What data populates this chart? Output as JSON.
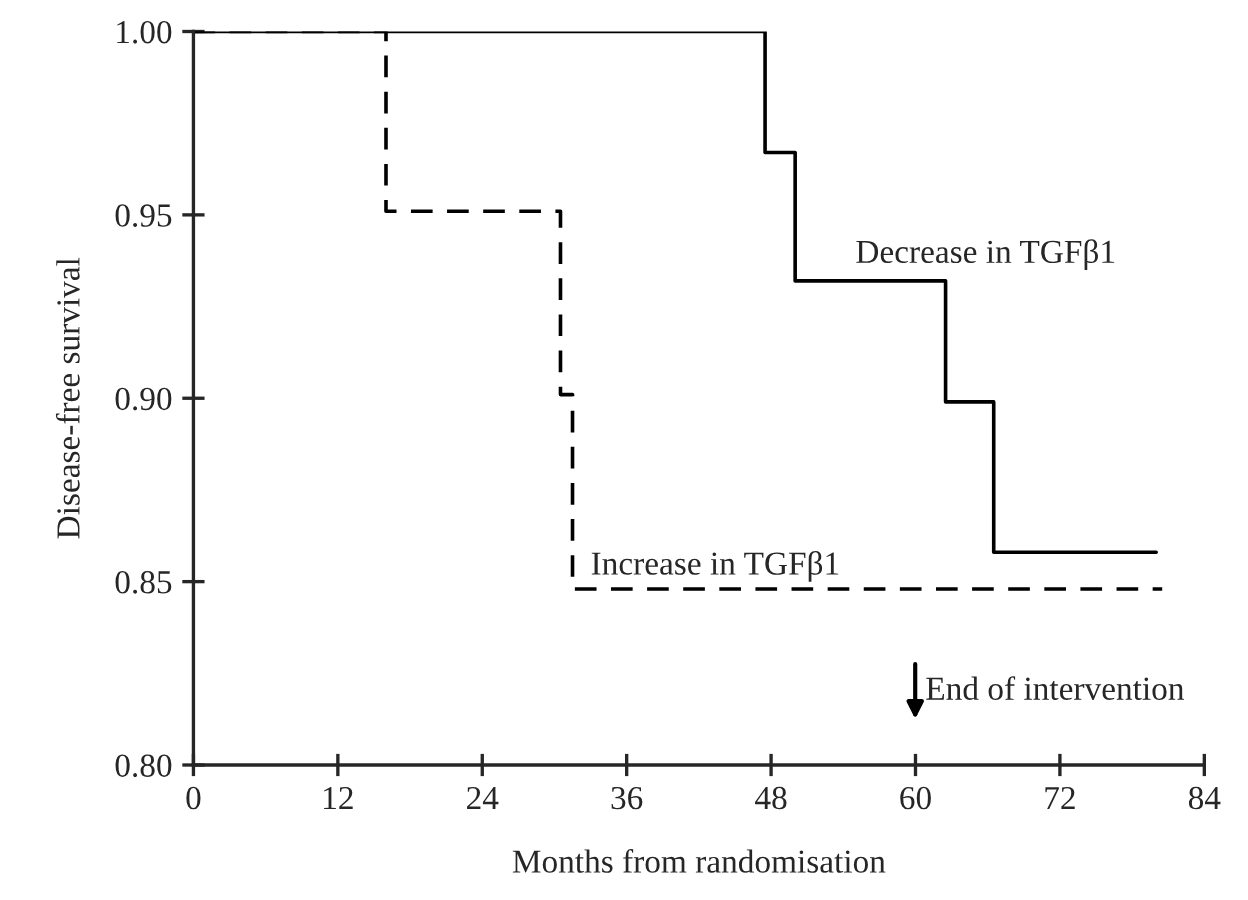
{
  "chart_data": {
    "type": "step",
    "xlabel": "Months from randomisation",
    "ylabel": "Disease-free survival",
    "xlim": [
      0,
      84
    ],
    "xticks": [
      0,
      12,
      24,
      36,
      48,
      60,
      72,
      84
    ],
    "ylim": [
      0.8,
      1.0
    ],
    "yticks": [
      {
        "value": 0.8,
        "label": "0.80"
      },
      {
        "value": 0.85,
        "label": "0.85"
      },
      {
        "value": 0.9,
        "label": "0.90"
      },
      {
        "value": 0.95,
        "label": "0.95"
      },
      {
        "value": 1.0,
        "label": "1.00"
      }
    ],
    "grid": false,
    "legend": false,
    "marker": "none",
    "series": [
      {
        "color": "#000000",
        "line_style": "solid",
        "x": [
          0,
          47.5,
          50,
          62.5,
          66.5,
          80
        ],
        "values": [
          1.0,
          0.967,
          0.932,
          0.899,
          0.858,
          0.858
        ]
      },
      {
        "color": "#000000",
        "line_style": "dashed",
        "x": [
          0,
          16,
          30.5,
          31.5,
          80.5
        ],
        "values": [
          1.0,
          0.951,
          0.901,
          0.848,
          0.848
        ]
      }
    ],
    "annotations": [
      {
        "text": "Decrease in TGFβ1",
        "x": 55,
        "y": 0.935
      },
      {
        "text": "Increase in TGFβ1",
        "x": 33,
        "y": 0.85
      },
      "End of intervention"
    ]
  }
}
